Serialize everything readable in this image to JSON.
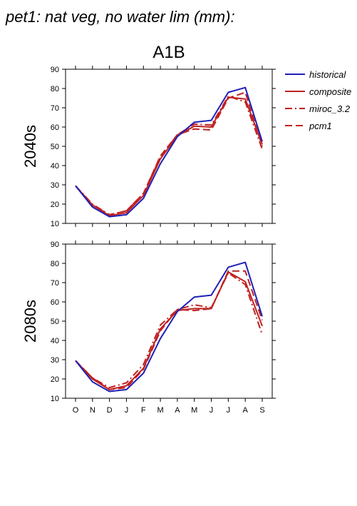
{
  "title": "pet1: nat veg, no water lim (mm):",
  "subtitle": "A1B",
  "legend": [
    {
      "name": "historical",
      "color": "#2020b8",
      "dash": "solid"
    },
    {
      "name": "composite",
      "color": "#c02020",
      "dash": "solid"
    },
    {
      "name": "miroc_3.2",
      "color": "#c02020",
      "dash": "dashdot"
    },
    {
      "name": "pcm1",
      "color": "#c02020",
      "dash": "dash"
    }
  ],
  "chart_data": [
    {
      "type": "line",
      "panel_label": "2040s",
      "categories": [
        "O",
        "N",
        "D",
        "J",
        "F",
        "M",
        "A",
        "M",
        "J",
        "J",
        "A",
        "S"
      ],
      "ylim": [
        10,
        90
      ],
      "yticks": [
        10,
        20,
        30,
        40,
        50,
        60,
        70,
        80,
        90
      ],
      "series": [
        {
          "name": "historical",
          "values": [
            29.5,
            18.5,
            13.5,
            14.5,
            23,
            41,
            55,
            62.5,
            63.5,
            78,
            80.5,
            52.5
          ]
        },
        {
          "name": "composite",
          "values": [
            29.5,
            19.5,
            14,
            15.5,
            24.5,
            43.5,
            55.5,
            60.5,
            60,
            75.5,
            74.5,
            51
          ]
        },
        {
          "name": "miroc_3.2",
          "values": [
            29.5,
            20,
            14.5,
            16.5,
            25.5,
            44.5,
            56,
            61.5,
            61,
            76,
            73,
            48.5
          ]
        },
        {
          "name": "pcm1",
          "values": [
            29.5,
            19.5,
            14.5,
            16.5,
            25.5,
            45,
            56,
            59,
            58.5,
            75,
            78,
            50
          ]
        }
      ]
    },
    {
      "type": "line",
      "panel_label": "2080s",
      "categories": [
        "O",
        "N",
        "D",
        "J",
        "F",
        "M",
        "A",
        "M",
        "J",
        "J",
        "A",
        "S"
      ],
      "ylim": [
        10,
        90
      ],
      "yticks": [
        10,
        20,
        30,
        40,
        50,
        60,
        70,
        80,
        90
      ],
      "series": [
        {
          "name": "historical",
          "values": [
            29.5,
            18.5,
            13.5,
            14.5,
            23,
            41,
            55,
            62.5,
            63.5,
            78,
            80.5,
            52.5
          ]
        },
        {
          "name": "composite",
          "values": [
            29.5,
            20,
            14.5,
            16.5,
            25.5,
            46,
            55.5,
            56.5,
            56.5,
            75.5,
            70.5,
            47.5
          ]
        },
        {
          "name": "miroc_3.2",
          "values": [
            29.5,
            20.5,
            15.5,
            18,
            27.5,
            48,
            56,
            58.5,
            57,
            75,
            69,
            43
          ]
        },
        {
          "name": "pcm1",
          "values": [
            29.5,
            20.5,
            14.5,
            15.5,
            25,
            45,
            56,
            55.5,
            56.5,
            76,
            76,
            50.5
          ]
        }
      ]
    }
  ]
}
